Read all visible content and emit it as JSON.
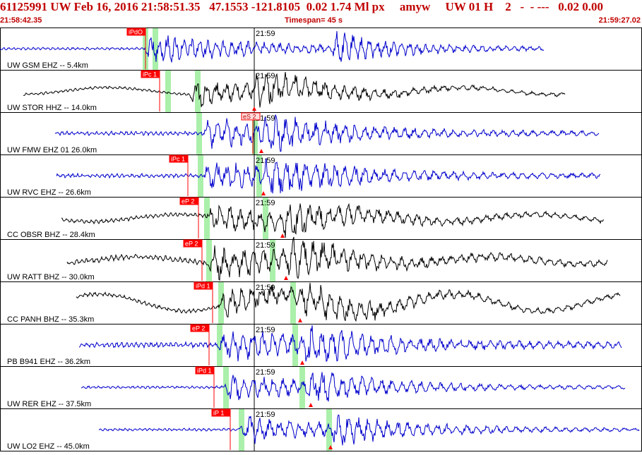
{
  "header": {
    "title": "61125991 UW Feb 16, 2016 21:58:51.35   47.1553 -121.8105  0.02 1.74 Ml px     amyw     UW 01 H    2   -  - ---   0.02 0.00",
    "start_time": "21:58:42.35",
    "timespan": "Timespan=  45 s",
    "end_time": "21:59:27.02"
  },
  "colors": {
    "header_text": "#c00000",
    "trace_blue": "#0000cc",
    "trace_black": "#000000",
    "pick_box": "#ff0000",
    "pick_line": "#ff0000",
    "green_band": "#aaf0aa",
    "minute_line": "#000000"
  },
  "minute_label": "21:59",
  "channels": [
    {
      "label": "UW GSM EHZ -- 5.4km",
      "color": "blue",
      "pick": "iPdO",
      "pick_style": "filled"
    },
    {
      "label": "UW STOR HHZ -- 14.0km",
      "color": "black",
      "pick": "iPc 1",
      "pick_style": "filled"
    },
    {
      "label": "UW FMW EHZ 01 26.0km",
      "color": "blue",
      "pick": "eS 2",
      "pick_style": "outline"
    },
    {
      "label": "UW RVC EHZ -- 26.6km",
      "color": "blue",
      "pick": "iPc 1",
      "pick_style": "filled"
    },
    {
      "label": "CC OBSR BHZ -- 28.4km",
      "color": "black",
      "pick": "eP 2",
      "pick_style": "filled"
    },
    {
      "label": "UW RATT BHZ -- 30.0km",
      "color": "black",
      "pick": "eP 2",
      "pick_style": "filled"
    },
    {
      "label": "CC PANH BHZ -- 35.3km",
      "color": "black",
      "pick": "iPd 1",
      "pick_style": "filled"
    },
    {
      "label": "PB B941 EHZ -- 36.2km",
      "color": "blue",
      "pick": "eP 2",
      "pick_style": "filled"
    },
    {
      "label": "UW RER EHZ -- 37.5km",
      "color": "blue",
      "pick": "iPd 1",
      "pick_style": "filled"
    },
    {
      "label": "UW LO2 EHZ -- 45.0km",
      "color": "blue",
      "pick": "iP 1",
      "pick_style": "filled"
    }
  ]
}
